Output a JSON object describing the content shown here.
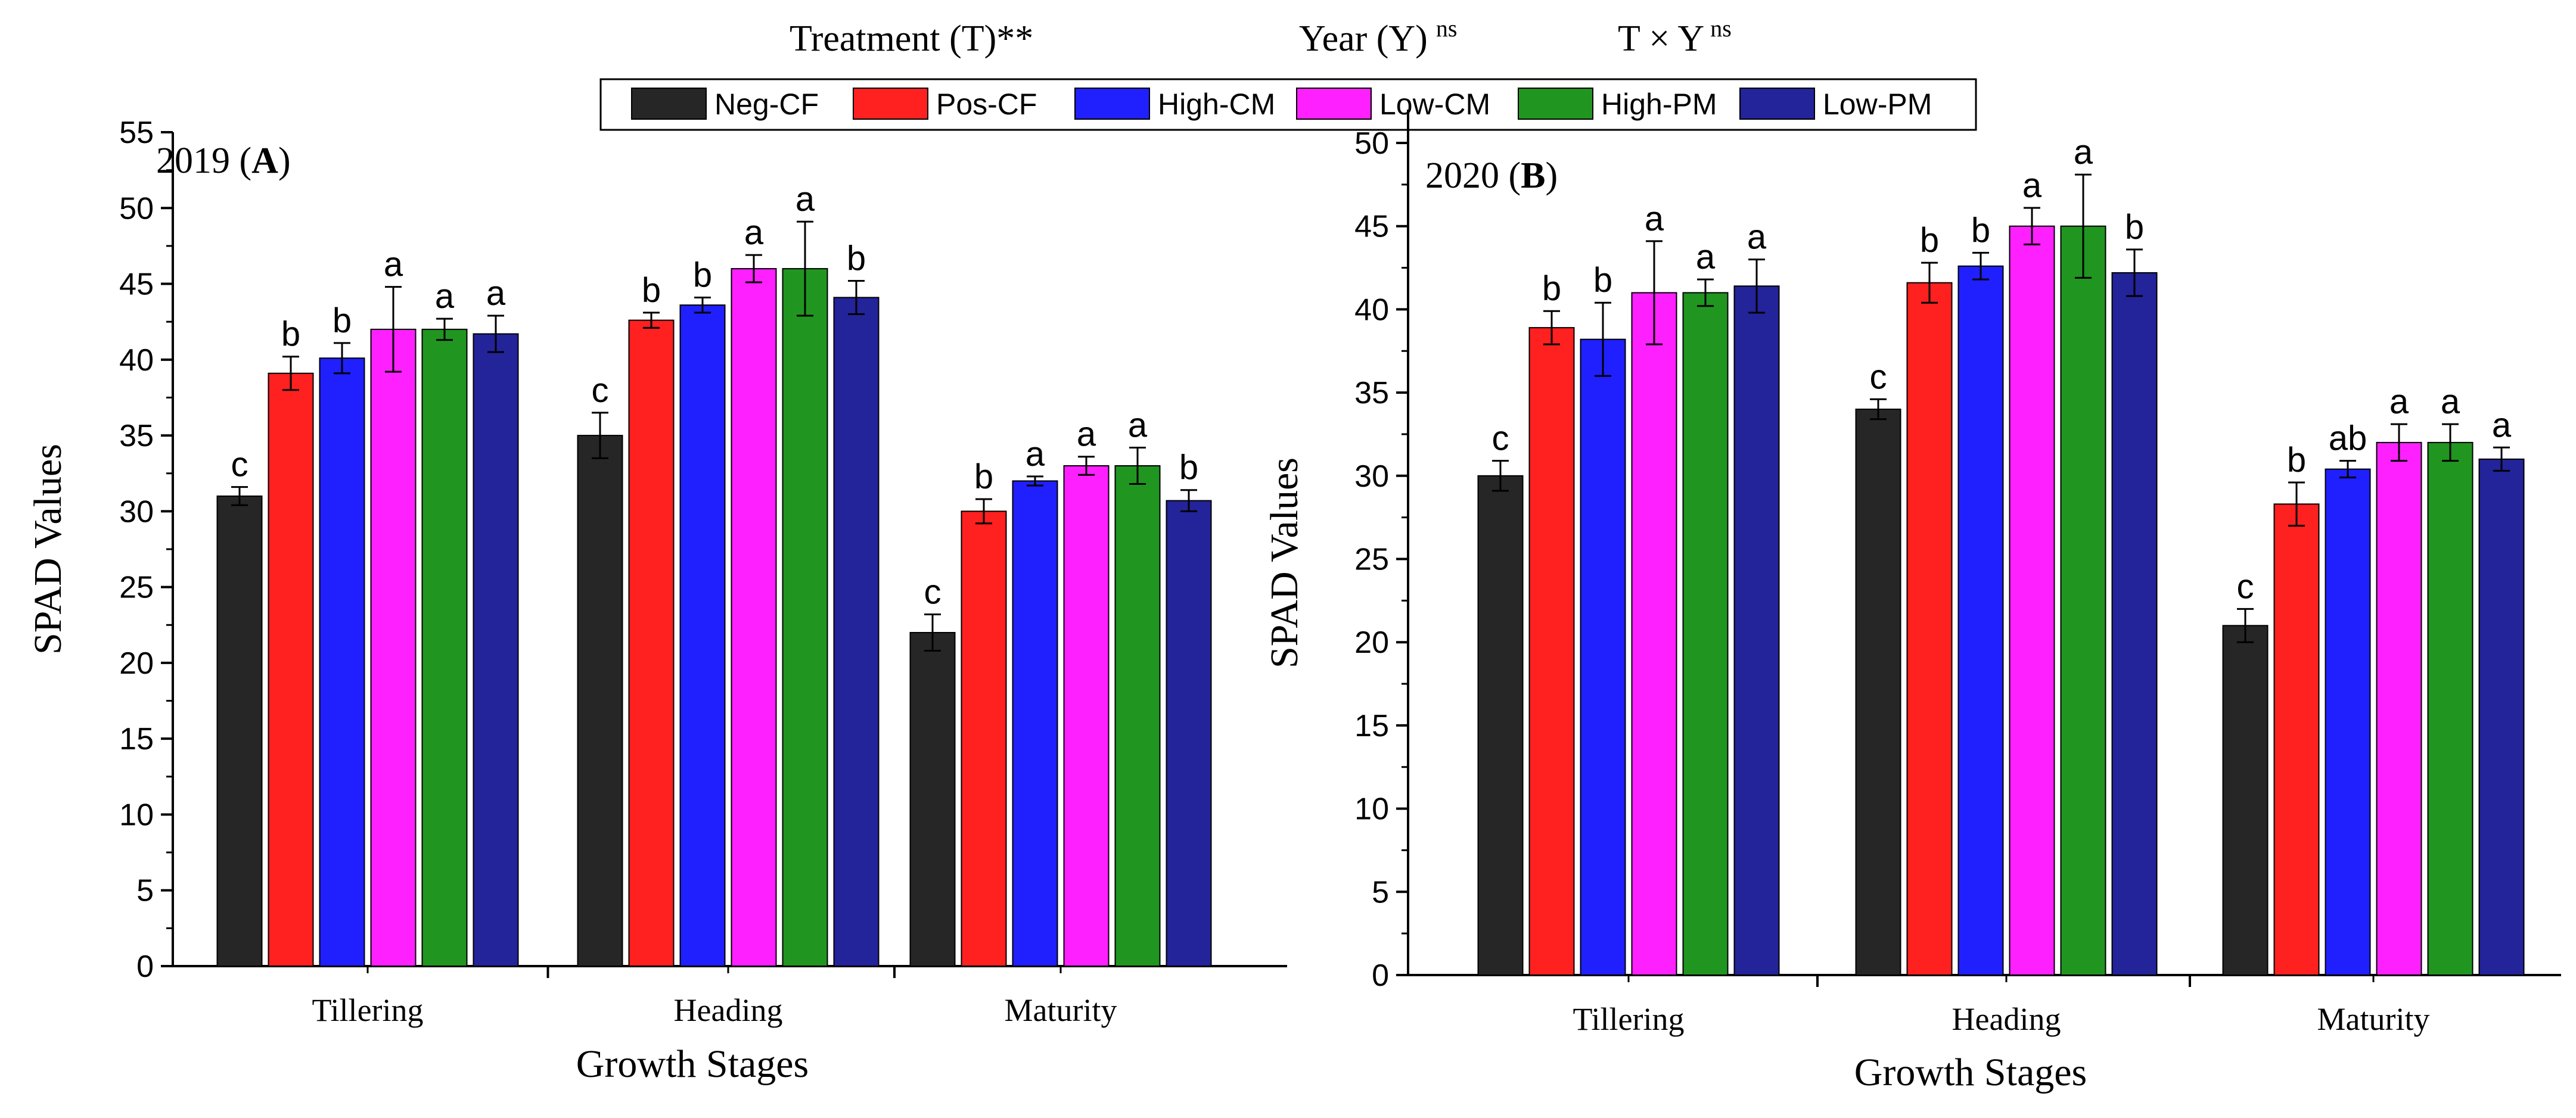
{
  "header": {
    "treatment_label": "Treatment (T)",
    "treatment_sig": "**",
    "year_label": "Year (Y)",
    "year_sig": "ns",
    "interaction_label": "T × Y",
    "interaction_sig": "ns"
  },
  "colors": {
    "Neg-CF": "#262626",
    "Pos-CF": "#ff2020",
    "High-CM": "#2020ff",
    "Low-CM": "#ff20ff",
    "High-PM": "#209620",
    "Low-PM": "#23239a"
  },
  "legend": [
    "Neg-CF",
    "Pos-CF",
    "High-CM",
    "Low-CM",
    "High-PM",
    "Low-PM"
  ],
  "chart_data": [
    {
      "type": "bar",
      "panel_year": "2019",
      "panel_letter": "A",
      "title": "2019 (A)",
      "xlabel": "Growth Stages",
      "ylabel": "SPAD Values",
      "ylim": [
        0,
        55
      ],
      "yticks": [
        0,
        5,
        10,
        15,
        20,
        25,
        30,
        35,
        40,
        45,
        50,
        55
      ],
      "ytick_labels": [
        "0",
        "5",
        "10",
        "15",
        "20",
        "25",
        "30",
        "35",
        "40",
        "45",
        "50",
        "55"
      ],
      "categories": [
        "Tillering",
        "Heading",
        "Maturity"
      ],
      "series": [
        {
          "name": "Neg-CF",
          "values": [
            31.0,
            35.0,
            22.0
          ],
          "errors": [
            0.6,
            1.5,
            1.2
          ],
          "letters": [
            "c",
            "c",
            "c"
          ]
        },
        {
          "name": "Pos-CF",
          "values": [
            39.1,
            42.6,
            30.0
          ],
          "errors": [
            1.1,
            0.5,
            0.8
          ],
          "letters": [
            "b",
            "b",
            "b"
          ]
        },
        {
          "name": "High-CM",
          "values": [
            40.1,
            43.6,
            32.0
          ],
          "errors": [
            1.0,
            0.5,
            0.3
          ],
          "letters": [
            "b",
            "b",
            "a"
          ]
        },
        {
          "name": "Low-CM",
          "values": [
            42.0,
            46.0,
            33.0
          ],
          "errors": [
            2.8,
            0.9,
            0.6
          ],
          "letters": [
            "a",
            "a",
            "a"
          ]
        },
        {
          "name": "High-PM",
          "values": [
            42.0,
            46.0,
            33.0
          ],
          "errors": [
            0.7,
            3.1,
            1.2
          ],
          "letters": [
            "a",
            "a",
            "a"
          ]
        },
        {
          "name": "Low-PM",
          "values": [
            41.7,
            44.1,
            30.7
          ],
          "errors": [
            1.2,
            1.1,
            0.7
          ],
          "letters": [
            "a",
            "b",
            "b"
          ]
        }
      ]
    },
    {
      "type": "bar",
      "panel_year": "2020",
      "panel_letter": "B",
      "title": "2020 (B)",
      "xlabel": "Growth Stages",
      "ylabel": "SPAD Values",
      "ylim": [
        0,
        52
      ],
      "yticks": [
        0,
        5,
        10,
        15,
        20,
        25,
        30,
        35,
        40,
        45,
        50
      ],
      "ytick_labels": [
        "0",
        "5",
        "10",
        "15",
        "20",
        "25",
        "30",
        "35",
        "40",
        "45",
        "50"
      ],
      "categories": [
        "Tillering",
        "Heading",
        "Maturity"
      ],
      "series": [
        {
          "name": "Neg-CF",
          "values": [
            30.0,
            34.0,
            21.0
          ],
          "errors": [
            0.9,
            0.6,
            1.0
          ],
          "letters": [
            "c",
            "c",
            "c"
          ]
        },
        {
          "name": "Pos-CF",
          "values": [
            38.9,
            41.6,
            28.3
          ],
          "errors": [
            1.0,
            1.2,
            1.3
          ],
          "letters": [
            "b",
            "b",
            "b"
          ]
        },
        {
          "name": "High-CM",
          "values": [
            38.2,
            42.6,
            30.4
          ],
          "errors": [
            2.2,
            0.8,
            0.5
          ],
          "letters": [
            "b",
            "b",
            "ab"
          ]
        },
        {
          "name": "Low-CM",
          "values": [
            41.0,
            45.0,
            32.0
          ],
          "errors": [
            3.1,
            1.1,
            1.1
          ],
          "letters": [
            "a",
            "a",
            "a"
          ]
        },
        {
          "name": "High-PM",
          "values": [
            41.0,
            45.0,
            32.0
          ],
          "errors": [
            0.8,
            3.1,
            1.1
          ],
          "letters": [
            "a",
            "a",
            "a"
          ]
        },
        {
          "name": "Low-PM",
          "values": [
            41.4,
            42.2,
            31.0
          ],
          "errors": [
            1.6,
            1.4,
            0.7
          ],
          "letters": [
            "a",
            "b",
            "a"
          ]
        }
      ]
    }
  ]
}
